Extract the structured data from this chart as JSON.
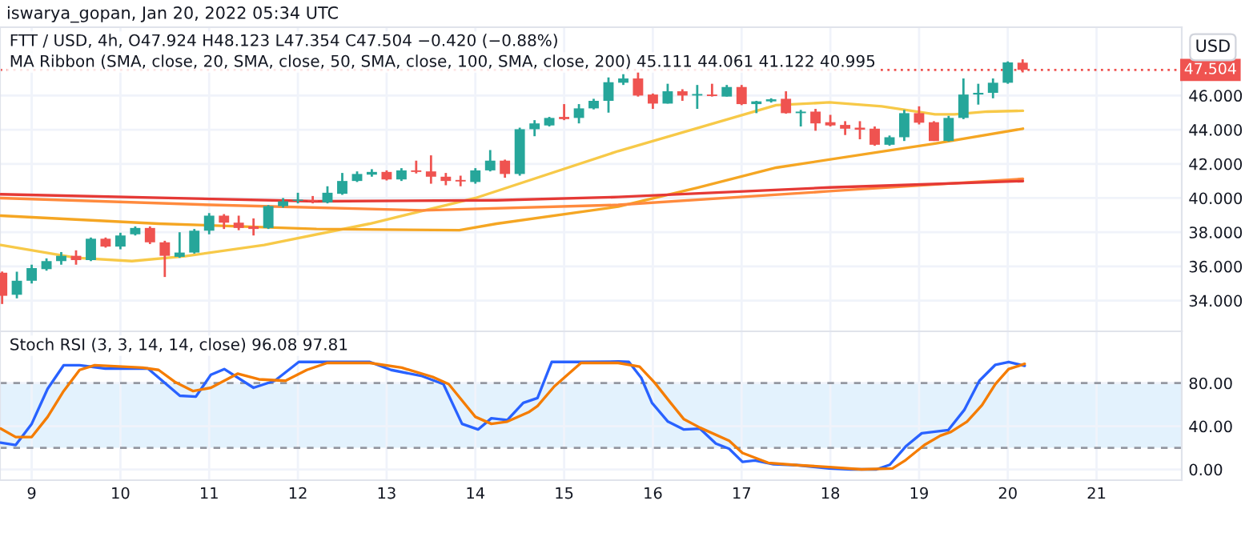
{
  "chart_data": [
    {
      "type": "candlestick",
      "title": "iswarya_gopan, Jan 20, 2022 05:34 UTC",
      "subtitle": "FTT / USD, 4h, O47.924 H48.123 L47.354 C47.504 −0.420 (−0.88%)",
      "annotations": [
        "MA Ribbon (SMA, close, 20, SMA, close, 50, SMA, close, 100, SMA, close, 200) 45.111 44.061 41.122 40.995"
      ],
      "ylabel": "USD",
      "x": [
        8.667,
        8.833,
        9,
        9.167,
        9.333,
        9.5,
        9.667,
        9.833,
        10,
        10.167,
        10.333,
        10.5,
        10.667,
        10.833,
        11,
        11.167,
        11.333,
        11.5,
        11.667,
        11.833,
        12,
        12.167,
        12.333,
        12.5,
        12.667,
        12.833,
        13,
        13.167,
        13.333,
        13.5,
        13.667,
        13.833,
        14,
        14.167,
        14.333,
        14.5,
        14.667,
        14.833,
        15,
        15.167,
        15.333,
        15.5,
        15.667,
        15.833,
        16,
        16.167,
        16.333,
        16.5,
        16.667,
        16.833,
        17,
        17.167,
        17.333,
        17.5,
        17.667,
        17.833,
        18,
        18.167,
        18.333,
        18.5,
        18.667,
        18.833,
        19,
        19.167,
        19.333,
        19.5,
        19.667,
        19.833,
        20,
        20.167
      ],
      "ohlc": [
        [
          35.63,
          35.7,
          33.8,
          34.28
        ],
        [
          34.34,
          35.69,
          34.13,
          35.16
        ],
        [
          35.16,
          36.1,
          35.0,
          35.9
        ],
        [
          35.84,
          36.47,
          35.75,
          36.31
        ],
        [
          36.31,
          36.84,
          36.1,
          36.62
        ],
        [
          36.62,
          36.94,
          36.1,
          36.37
        ],
        [
          36.37,
          37.69,
          36.31,
          37.62
        ],
        [
          37.62,
          37.69,
          37.1,
          37.16
        ],
        [
          37.16,
          37.97,
          37.0,
          37.81
        ],
        [
          37.88,
          38.34,
          37.81,
          38.25
        ],
        [
          38.25,
          38.34,
          37.31,
          37.41
        ],
        [
          37.41,
          37.5,
          35.38,
          36.62
        ],
        [
          36.56,
          38.0,
          36.5,
          36.81
        ],
        [
          36.81,
          38.19,
          36.75,
          38.09
        ],
        [
          38.09,
          39.12,
          37.88,
          38.97
        ],
        [
          38.97,
          39.06,
          38.19,
          38.56
        ],
        [
          38.56,
          38.97,
          38.12,
          38.25
        ],
        [
          38.34,
          38.81,
          37.81,
          38.19
        ],
        [
          38.25,
          39.59,
          38.19,
          39.53
        ],
        [
          39.53,
          40.0,
          39.44,
          39.81
        ],
        [
          39.84,
          40.31,
          39.69,
          39.91
        ],
        [
          39.87,
          40.12,
          39.69,
          39.81
        ],
        [
          39.75,
          40.69,
          39.69,
          40.31
        ],
        [
          40.25,
          41.47,
          40.19,
          41.0
        ],
        [
          41.0,
          41.56,
          40.94,
          41.41
        ],
        [
          41.37,
          41.69,
          41.25,
          41.53
        ],
        [
          41.53,
          41.62,
          41.03,
          41.09
        ],
        [
          41.09,
          41.75,
          41.0,
          41.62
        ],
        [
          41.62,
          42.19,
          41.44,
          41.53
        ],
        [
          41.56,
          42.5,
          40.84,
          41.25
        ],
        [
          41.25,
          41.47,
          40.75,
          41.0
        ],
        [
          41.06,
          41.31,
          40.69,
          40.97
        ],
        [
          40.94,
          41.75,
          40.84,
          41.62
        ],
        [
          41.62,
          42.81,
          41.56,
          42.19
        ],
        [
          42.19,
          42.25,
          41.19,
          41.41
        ],
        [
          41.41,
          44.12,
          41.31,
          44.03
        ],
        [
          44.03,
          44.56,
          43.62,
          44.37
        ],
        [
          44.25,
          44.75,
          44.19,
          44.69
        ],
        [
          44.75,
          45.5,
          44.56,
          44.62
        ],
        [
          44.69,
          45.5,
          44.37,
          45.25
        ],
        [
          45.25,
          45.81,
          45.19,
          45.69
        ],
        [
          45.69,
          47.06,
          45.0,
          46.78
        ],
        [
          46.75,
          47.25,
          46.62,
          47.0
        ],
        [
          47.0,
          47.37,
          45.94,
          46.0
        ],
        [
          46.06,
          46.12,
          45.22,
          45.53
        ],
        [
          45.53,
          46.69,
          45.53,
          46.25
        ],
        [
          46.25,
          46.37,
          45.69,
          46.0
        ],
        [
          46.0,
          46.62,
          45.22,
          46.09
        ],
        [
          46.06,
          46.69,
          45.94,
          45.97
        ],
        [
          45.94,
          46.62,
          45.94,
          46.5
        ],
        [
          46.5,
          46.62,
          45.44,
          45.5
        ],
        [
          45.5,
          45.69,
          44.97,
          45.66
        ],
        [
          45.66,
          45.84,
          45.59,
          45.78
        ],
        [
          45.81,
          46.25,
          44.94,
          44.97
        ],
        [
          44.97,
          45.16,
          44.19,
          45.06
        ],
        [
          45.06,
          45.22,
          43.94,
          44.37
        ],
        [
          44.44,
          44.87,
          44.19,
          44.25
        ],
        [
          44.28,
          44.5,
          43.69,
          44.06
        ],
        [
          44.12,
          44.5,
          43.44,
          44.0
        ],
        [
          44.06,
          44.19,
          43.06,
          43.12
        ],
        [
          43.12,
          43.66,
          43.06,
          43.56
        ],
        [
          43.56,
          45.16,
          43.34,
          44.97
        ],
        [
          44.97,
          45.37,
          44.31,
          44.41
        ],
        [
          44.44,
          44.5,
          43.34,
          43.34
        ],
        [
          43.34,
          44.81,
          43.31,
          44.69
        ],
        [
          44.69,
          47.0,
          44.62,
          46.06
        ],
        [
          46.06,
          46.69,
          45.47,
          46.16
        ],
        [
          46.16,
          47.0,
          45.84,
          46.75
        ],
        [
          46.75,
          48.0,
          46.69,
          47.94
        ],
        [
          47.924,
          48.123,
          47.354,
          47.504
        ]
      ],
      "series": [
        {
          "type": "line",
          "color": "#f7c948",
          "x": [
            8.65,
            9.5,
            10.13,
            10.73,
            11.62,
            12.81,
            14.0,
            15.61,
            17.39,
            17.99,
            18.58,
            19.18,
            19.4,
            19.77,
            20.17
          ],
          "values": [
            37.25,
            36.5,
            36.31,
            36.6,
            37.25,
            38.5,
            40.0,
            42.75,
            45.44,
            45.6,
            45.37,
            44.9,
            44.9,
            45.06,
            45.111
          ]
        },
        {
          "type": "line",
          "color": "#f5a623",
          "x": [
            8.65,
            10.43,
            12.21,
            13.82,
            14.24,
            15.61,
            16.5,
            17.39,
            18.58,
            19.18,
            20.17
          ],
          "values": [
            38.97,
            38.5,
            38.19,
            38.12,
            38.5,
            39.5,
            40.6,
            41.78,
            42.72,
            43.19,
            44.061
          ]
        },
        {
          "type": "line",
          "color": "#ff8a3d",
          "x": [
            8.65,
            11.02,
            13.4,
            15.61,
            17.99,
            20.17
          ],
          "values": [
            40.0,
            39.6,
            39.28,
            39.6,
            40.4,
            41.122
          ]
        },
        {
          "type": "line",
          "color": "#e53935",
          "x": [
            8.65,
            12.21,
            14.24,
            15.61,
            17.99,
            20.17
          ],
          "values": [
            40.22,
            39.81,
            39.87,
            40.06,
            40.62,
            40.995
          ]
        }
      ],
      "xlim": [
        8.643,
        21.96
      ],
      "xticks": [
        9,
        10,
        11,
        12,
        13,
        14,
        15,
        16,
        17,
        18,
        19,
        20,
        21
      ],
      "ylim": [
        32.2,
        50.0
      ],
      "yticks": [
        {
          "value": 34,
          "label": "34.000"
        },
        {
          "value": 36,
          "label": "36.000"
        },
        {
          "value": 38,
          "label": "38.000"
        },
        {
          "value": 40,
          "label": "40.000"
        },
        {
          "value": 42,
          "label": "42.000"
        },
        {
          "value": 44,
          "label": "44.000"
        },
        {
          "value": 46,
          "label": "46.000"
        }
      ],
      "ref_lines": [
        {
          "axis": "y",
          "value": 47.504,
          "label": "47.504",
          "color": "#ef5350",
          "line_style": "dotted"
        }
      ],
      "tick_labels": "y",
      "grid": true
    },
    {
      "type": "line",
      "annotations": [
        "Stoch RSI (3, 3, 14, 14, close) 96.08 97.81"
      ],
      "series": [
        {
          "color": "#2962ff",
          "x": [
            8.65,
            8.82,
            9.0,
            9.18,
            9.36,
            9.54,
            9.83,
            10.31,
            10.67,
            10.85,
            11.02,
            11.17,
            11.5,
            11.74,
            12.01,
            12.81,
            13.05,
            13.4,
            13.64,
            13.85,
            14.03,
            14.18,
            14.36,
            14.54,
            14.7,
            14.86,
            15.19,
            15.61,
            15.73,
            15.87,
            15.99,
            16.17,
            16.35,
            16.53,
            16.71,
            16.86,
            17.01,
            17.15,
            17.36,
            17.63,
            17.99,
            18.23,
            18.52,
            18.67,
            18.85,
            19.03,
            19.33,
            19.51,
            19.68,
            19.86,
            20.01,
            20.19
          ],
          "values": [
            24.8,
            22.6,
            42.2,
            74.8,
            96.5,
            96.5,
            93.5,
            93.5,
            68.3,
            67.4,
            87.8,
            93,
            75.7,
            82.2,
            99.6,
            99.6,
            92.2,
            86.5,
            79,
            42.2,
            37,
            47.4,
            45.7,
            61.7,
            66.1,
            99.6,
            99.6,
            100,
            99.6,
            84.8,
            61.7,
            44.3,
            37,
            37.8,
            23.9,
            19.1,
            7.0,
            8.3,
            4.8,
            3.9,
            0.9,
            0,
            0,
            4.3,
            21.3,
            33.5,
            36.5,
            55.2,
            82.2,
            97,
            99.6,
            96.08
          ]
        },
        {
          "color": "#f57c00",
          "x": [
            8.65,
            8.82,
            9.0,
            9.18,
            9.36,
            9.54,
            9.71,
            10.25,
            10.43,
            10.61,
            10.82,
            11.02,
            11.32,
            11.56,
            11.86,
            12.1,
            12.33,
            12.81,
            13.17,
            13.52,
            13.7,
            14.0,
            14.18,
            14.36,
            14.6,
            14.7,
            14.89,
            15.19,
            15.61,
            15.85,
            16.02,
            16.2,
            16.35,
            16.53,
            16.86,
            17.01,
            17.3,
            17.63,
            17.99,
            18.35,
            18.7,
            18.85,
            19.06,
            19.24,
            19.36,
            19.54,
            19.71,
            19.86,
            20.01,
            20.19
          ],
          "values": [
            37.8,
            30,
            30,
            48.7,
            72.6,
            92.2,
            96.5,
            94.3,
            92.2,
            81.3,
            72.6,
            75.7,
            88.7,
            83.5,
            82.2,
            92.2,
            98.7,
            98.7,
            94.3,
            85.7,
            79,
            48.7,
            42.2,
            44.3,
            53,
            58.7,
            77,
            98.7,
            98.7,
            95.2,
            80.4,
            61.7,
            46.5,
            38.7,
            26.5,
            15.2,
            6.1,
            3.9,
            2.2,
            0,
            0.9,
            8.7,
            22.6,
            31.3,
            34.8,
            44.3,
            59.6,
            79.1,
            93,
            97.81
          ]
        }
      ],
      "xlim": [
        8.643,
        21.96
      ],
      "xticks": [
        9,
        10,
        11,
        12,
        13,
        14,
        15,
        16,
        17,
        18,
        19,
        20,
        21
      ],
      "ylim": [
        -10,
        128
      ],
      "yticks": [
        {
          "value": 0,
          "label": "0.00"
        },
        {
          "value": 40,
          "label": "40.00"
        },
        {
          "value": 80,
          "label": "80.00"
        }
      ],
      "bands": [
        {
          "axis": "y",
          "from": 20,
          "to": 80,
          "color": "#e3f2fd"
        }
      ],
      "ref_lines": [
        {
          "axis": "y",
          "value": 80,
          "color": "#9598a1",
          "line_style": "dashed"
        },
        {
          "axis": "y",
          "value": 20,
          "color": "#9598a1",
          "line_style": "dashed"
        }
      ],
      "grid": true
    }
  ]
}
